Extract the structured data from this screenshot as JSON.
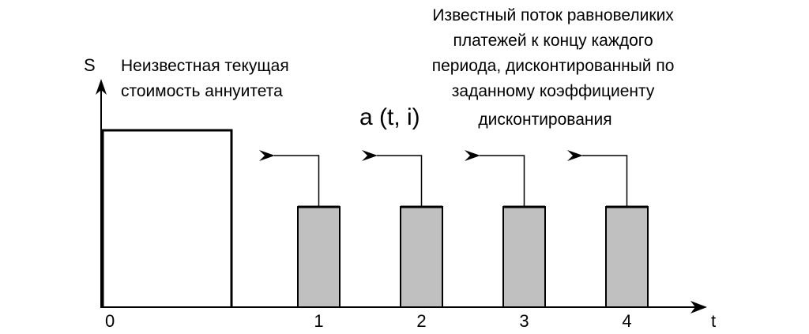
{
  "axes": {
    "y_label": "S",
    "x_label": "t",
    "origin_label": "0",
    "x_ticks": [
      "1",
      "2",
      "3",
      "4"
    ]
  },
  "pv_note": {
    "lines": [
      "Неизвестная текущая",
      "стоимость аннуитета"
    ]
  },
  "formula": "a (t, i)",
  "payments_note": {
    "lines": [
      "Известный поток равновеликих",
      "платежей к концу каждого",
      "периода, дисконтированный по",
      "заданному коэффициенту",
      "дисконтирования"
    ]
  },
  "payments": [
    {
      "period": "1"
    },
    {
      "period": "2"
    },
    {
      "period": "3"
    },
    {
      "period": "4"
    }
  ],
  "colors": {
    "payment_fill": "#c0c0c0",
    "line": "#000000"
  }
}
